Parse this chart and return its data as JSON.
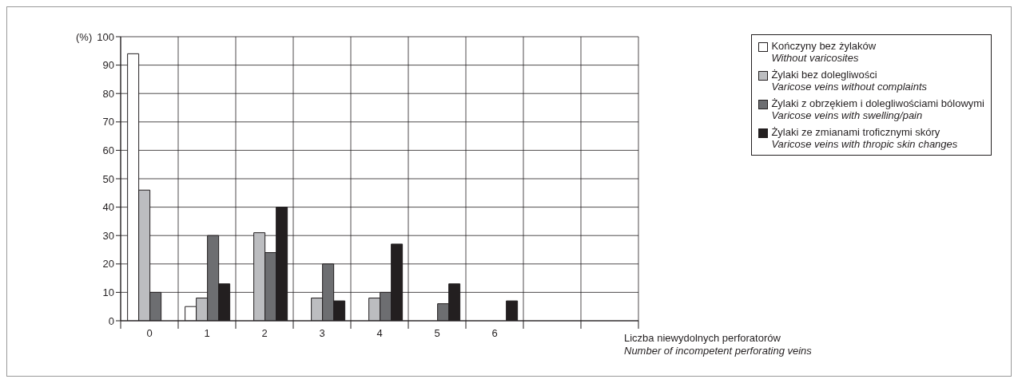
{
  "chart_data": {
    "type": "bar",
    "ylabel": "(%)",
    "xlabel": "Liczba niewydolnych perforatorów\nNumber of incompetent perforating veins",
    "categories": [
      "0",
      "1",
      "2",
      "3",
      "4",
      "5",
      "6",
      null,
      null
    ],
    "series": [
      {
        "name": "Kończyny bez żylaków\nWithout varicosites",
        "color": "#ffffff",
        "values": [
          94,
          5,
          null,
          null,
          null,
          null,
          null,
          null,
          null
        ]
      },
      {
        "name": "Żylaki bez dolegliwości\nVaricose veins without complaints",
        "color": "#bcbdc0",
        "values": [
          46,
          8,
          31,
          8,
          8,
          null,
          null,
          null,
          null
        ]
      },
      {
        "name": "Żylaki z obrzękiem i dolegliwościami bólowymi\nVaricose veins with swelling/pain",
        "color": "#6d6e71",
        "values": [
          10,
          30,
          24,
          20,
          10,
          6,
          null,
          null,
          null
        ]
      },
      {
        "name": "Żylaki ze zmianami troficznymi skóry\nVaricose veins with thropic skin changes",
        "color": "#231f20",
        "values": [
          null,
          13,
          40,
          7,
          27,
          13,
          7,
          null,
          null
        ]
      }
    ],
    "ylim": [
      0,
      100
    ],
    "yticks": [
      0,
      10,
      20,
      30,
      40,
      50,
      60,
      70,
      80,
      90,
      100
    ],
    "grid": true,
    "legend": "top right"
  }
}
